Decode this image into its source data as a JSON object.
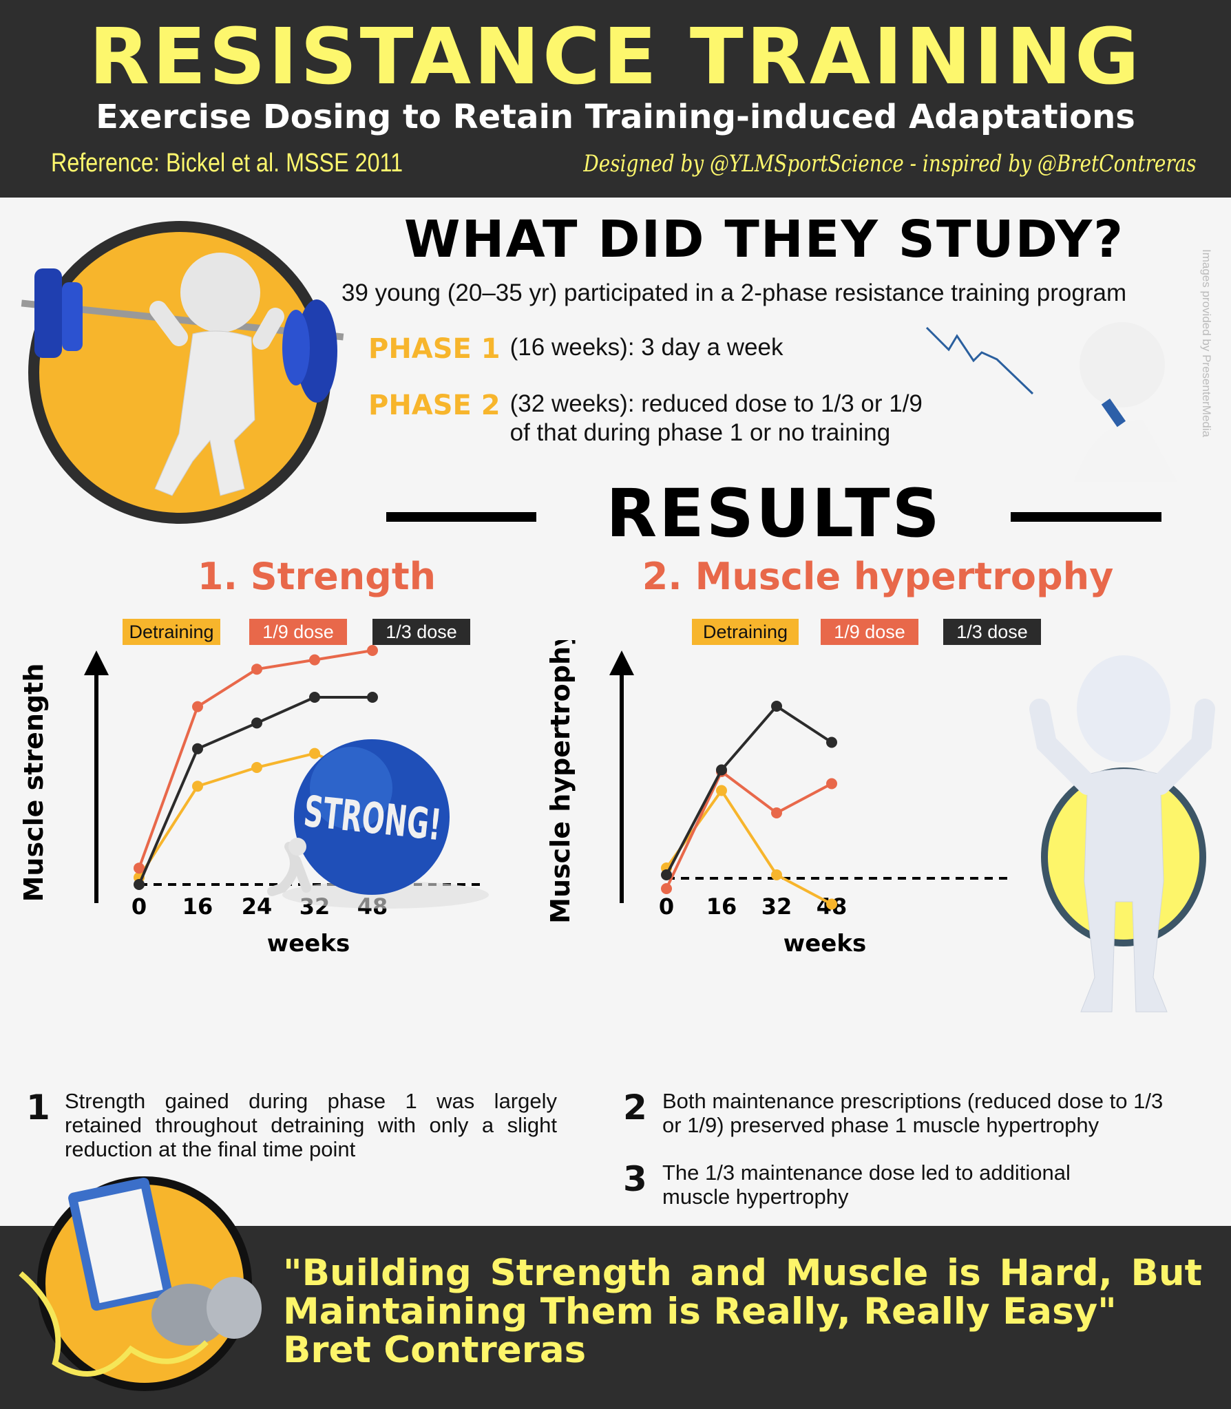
{
  "header": {
    "title": "RESISTANCE TRAINING",
    "subtitle": "Exercise Dosing to Retain Training-induced Adaptations",
    "reference": "Reference: Bickel et al. MSSE 2011",
    "credit": "Designed by @YLMSportScience - inspired by @BretContreras"
  },
  "study": {
    "title": "WHAT DID THEY STUDY?",
    "description": "39 young (20–35 yr) participated in a 2-phase resistance training program",
    "phases": [
      {
        "label": "PHASE 1",
        "text": "(16 weeks): 3 day a week"
      },
      {
        "label": "PHASE 2",
        "text": "(32 weeks): reduced dose to 1/3 or 1/9",
        "text2": "of that during phase 1 or no training"
      }
    ]
  },
  "watermark": "Images provided by PresenterMedia",
  "results": {
    "title": "RESULTS"
  },
  "colors": {
    "detraining": "#f7b52c",
    "dose_1_9": "#e8684a",
    "dose_1_3": "#2b2b2b",
    "accent_yellow": "#fdf76d",
    "dark_bg": "#2e2e2e"
  },
  "ball_text": "STRONG!",
  "chart_data": [
    {
      "type": "line",
      "title": "1. Strength",
      "xlabel": "weeks",
      "ylabel": "Muscle strength",
      "categories": [
        "0",
        "16",
        "24",
        "32",
        "48"
      ],
      "y_ticks": "none (relative scale, dashed baseline at start)",
      "ylim": [
        -5,
        105
      ],
      "legend_position": "top",
      "series": [
        {
          "name": "Detraining",
          "values": [
            3,
            42,
            50,
            56,
            45
          ]
        },
        {
          "name": "1/9 dose",
          "values": [
            7,
            76,
            92,
            96,
            100
          ]
        },
        {
          "name": "1/3 dose",
          "values": [
            0,
            58,
            69,
            80,
            80
          ]
        }
      ]
    },
    {
      "type": "line",
      "title": "2. Muscle hypertrophy",
      "xlabel": "weeks",
      "ylabel": "Muscle hypertrophy",
      "categories": [
        "0",
        "16",
        "32",
        "48"
      ],
      "y_ticks": "none (relative scale, dashed baseline at start)",
      "ylim": [
        -20,
        105
      ],
      "legend_position": "top",
      "series": [
        {
          "name": "Detraining",
          "values": [
            6,
            51,
            2,
            -15
          ]
        },
        {
          "name": "1/9 dose",
          "values": [
            -6,
            62,
            38,
            55
          ]
        },
        {
          "name": "1/3 dose",
          "values": [
            2,
            63,
            100,
            79
          ]
        }
      ]
    }
  ],
  "findings": [
    {
      "number": "1",
      "text": "Strength gained during phase 1 was largely retained throughout detraining with only a slight reduction at the final time point"
    },
    {
      "number": "2",
      "text": "Both maintenance prescriptions (reduced dose to 1/3 or 1/9) preserved phase 1 muscle hypertrophy"
    },
    {
      "number": "3",
      "text": "The 1/3 maintenance dose led to additional muscle hypertrophy"
    }
  ],
  "quote": {
    "text": "\"Building Strength and Muscle is Hard, But Maintaining Them is Really, Really Easy\"",
    "author": "Bret Contreras"
  }
}
